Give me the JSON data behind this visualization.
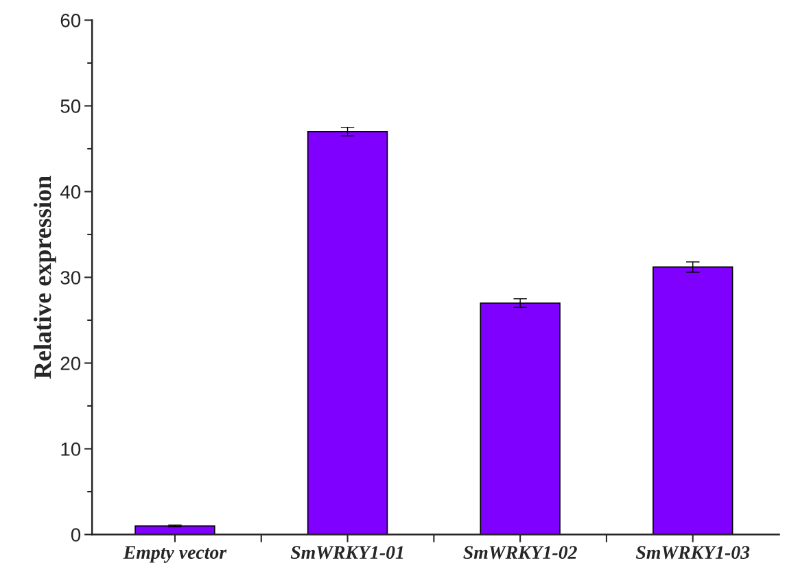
{
  "chart_data": {
    "type": "bar",
    "ylabel": "Relative expression",
    "categories": [
      "Empty vector",
      "SmWRKY1-01",
      "SmWRKY1-02",
      "SmWRKY1-03"
    ],
    "values": [
      1,
      47,
      27,
      31.2
    ],
    "errors": [
      0.1,
      0.5,
      0.5,
      0.6
    ],
    "color": "#7f00ff",
    "ylim": [
      0,
      60
    ],
    "yticks": [
      0,
      10,
      20,
      30,
      40,
      50,
      60
    ],
    "grid": false
  }
}
